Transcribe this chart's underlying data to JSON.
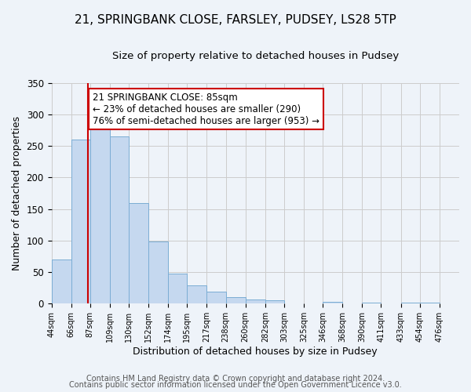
{
  "title": "21, SPRINGBANK CLOSE, FARSLEY, PUDSEY, LS28 5TP",
  "subtitle": "Size of property relative to detached houses in Pudsey",
  "xlabel": "Distribution of detached houses by size in Pudsey",
  "ylabel": "Number of detached properties",
  "bar_left_edges": [
    44,
    66,
    87,
    109,
    130,
    152,
    174,
    195,
    217,
    238,
    260,
    282,
    303,
    325,
    346,
    368,
    390,
    411,
    433,
    454
  ],
  "bar_heights": [
    70,
    260,
    293,
    265,
    160,
    98,
    48,
    29,
    19,
    10,
    7,
    5,
    0,
    0,
    3,
    0,
    2,
    0,
    2,
    2
  ],
  "bar_widths": [
    22,
    21,
    22,
    21,
    22,
    22,
    21,
    22,
    21,
    22,
    22,
    21,
    22,
    21,
    22,
    22,
    21,
    22,
    21,
    22
  ],
  "xtick_labels": [
    "44sqm",
    "66sqm",
    "87sqm",
    "109sqm",
    "130sqm",
    "152sqm",
    "174sqm",
    "195sqm",
    "217sqm",
    "238sqm",
    "260sqm",
    "282sqm",
    "303sqm",
    "325sqm",
    "346sqm",
    "368sqm",
    "390sqm",
    "411sqm",
    "433sqm",
    "454sqm",
    "476sqm"
  ],
  "xtick_positions": [
    44,
    66,
    87,
    109,
    130,
    152,
    174,
    195,
    217,
    238,
    260,
    282,
    303,
    325,
    346,
    368,
    390,
    411,
    433,
    454,
    476
  ],
  "ylim": [
    0,
    350
  ],
  "yticks": [
    0,
    50,
    100,
    150,
    200,
    250,
    300,
    350
  ],
  "bar_color": "#c5d8ef",
  "bar_edge_color": "#7badd4",
  "grid_color": "#cccccc",
  "bg_color": "#eef3f9",
  "property_line_x": 85,
  "annotation_title": "21 SPRINGBANK CLOSE: 85sqm",
  "annotation_line1": "← 23% of detached houses are smaller (290)",
  "annotation_line2": "76% of semi-detached houses are larger (953) →",
  "annotation_box_color": "#ffffff",
  "annotation_border_color": "#cc0000",
  "property_line_color": "#cc0000",
  "footer1": "Contains HM Land Registry data © Crown copyright and database right 2024.",
  "footer2": "Contains public sector information licensed under the Open Government Licence v3.0.",
  "title_fontsize": 11,
  "subtitle_fontsize": 9.5,
  "xlabel_fontsize": 9,
  "ylabel_fontsize": 9,
  "annotation_fontsize": 8.5,
  "footer_fontsize": 7
}
